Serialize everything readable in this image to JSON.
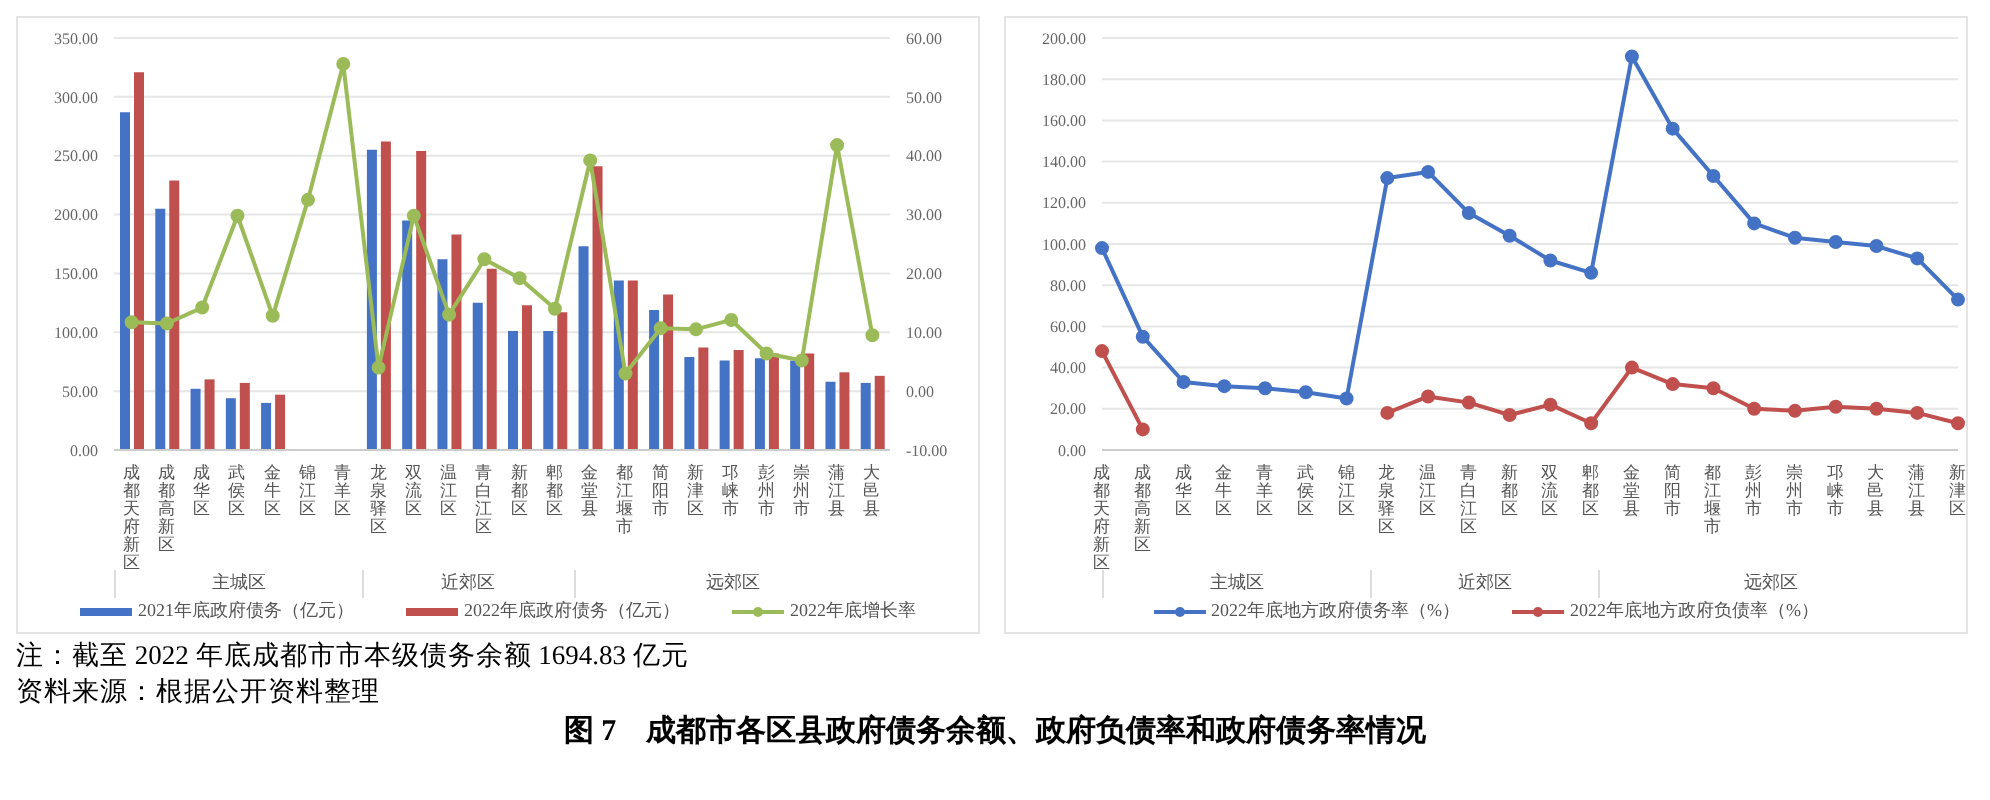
{
  "chart_data": [
    {
      "type": "bar",
      "categories": [
        "成都天府新区",
        "成都高新区",
        "成华区",
        "武侯区",
        "金牛区",
        "锦江区",
        "青羊区",
        "龙泉驿区",
        "双流区",
        "温江区",
        "青白江区",
        "新都区",
        "郫都区",
        "金堂县",
        "都江堰市",
        "简阳市",
        "新津区",
        "邛崃市",
        "彭州市",
        "崇州市",
        "蒲江县",
        "大邑县"
      ],
      "series": [
        {
          "name": "2021年底政府债务（亿元）",
          "color": "#4472c4",
          "values": [
            287,
            205,
            52,
            44,
            40,
            null,
            null,
            255,
            195,
            162,
            125,
            101,
            101,
            173,
            144,
            119,
            79,
            76,
            78,
            76,
            58,
            57
          ]
        },
        {
          "name": "2022年底政府债务（亿元）",
          "color": "#c0504d",
          "values": [
            321,
            229,
            60,
            57,
            47,
            null,
            null,
            262,
            254,
            183,
            154,
            123,
            117,
            241,
            144,
            132,
            87,
            85,
            82,
            82,
            66,
            63
          ]
        },
        {
          "name": "2022年底增长率",
          "color": "#9bbb59",
          "type": "line",
          "axis": "y2",
          "values": [
            11.7,
            11.5,
            14.2,
            29.8,
            12.8,
            32.5,
            55.6,
            4,
            29.8,
            13,
            22.4,
            19.2,
            14,
            39.2,
            3,
            10.7,
            10.5,
            12.1,
            6.4,
            5.2,
            41.8,
            9.5
          ]
        }
      ],
      "ylim": [
        0,
        350
      ],
      "yticks": [
        {
          "value": 0,
          "label": "0.00"
        },
        {
          "value": 50,
          "label": "50.00"
        },
        {
          "value": 100,
          "label": "100.00"
        },
        {
          "value": 150,
          "label": "150.00"
        },
        {
          "value": 200,
          "label": "200.00"
        },
        {
          "value": 250,
          "label": "250.00"
        },
        {
          "value": 300,
          "label": "300.00"
        },
        {
          "value": 350,
          "label": "350.00"
        }
      ],
      "y2lim": [
        -10,
        60
      ],
      "y2ticks": [
        {
          "value": -10,
          "label": "-10.00"
        },
        {
          "value": 0,
          "label": "0.00"
        },
        {
          "value": 10,
          "label": "10.00"
        },
        {
          "value": 20,
          "label": "20.00"
        },
        {
          "value": 30,
          "label": "30.00"
        },
        {
          "value": 40,
          "label": "40.00"
        },
        {
          "value": 50,
          "label": "50.00"
        },
        {
          "value": 60,
          "label": "60.00"
        }
      ],
      "grid": "y",
      "legend": "bottom",
      "marker": "circle",
      "annotations": [
        "主城区",
        "近郊区",
        "远郊区",
        "注：截至 2022 年底成都市市本级债务余额 1694.83 亿元",
        "资料来源：根据公开资料整理",
        "图 7　成都市各区县政府债务余额、政府负债率和政府债务率情况"
      ]
    },
    {
      "type": "line",
      "categories": [
        "成都天府新区",
        "成都高新区",
        "成华区",
        "金牛区",
        "青羊区",
        "武侯区",
        "锦江区",
        "龙泉驿区",
        "温江区",
        "青白江区",
        "新都区",
        "双流区",
        "郫都区",
        "金堂县",
        "简阳市",
        "都江堰市",
        "彭州市",
        "崇州市",
        "邛崃市",
        "大邑县",
        "蒲江县",
        "新津区"
      ],
      "series": [
        {
          "name": "2022年底地方政府债务率（%）",
          "color": "#4472c4",
          "values": [
            98,
            55,
            33,
            31,
            30,
            28,
            25,
            132,
            135,
            115,
            104,
            92,
            86,
            191,
            156,
            133,
            110,
            103,
            101,
            99,
            93,
            73
          ]
        },
        {
          "name": "2022年底地方政府负债率（%）",
          "color": "#c0504d",
          "values": [
            48,
            10,
            null,
            null,
            null,
            null,
            null,
            18,
            26,
            23,
            17,
            22,
            13,
            40,
            32,
            30,
            20,
            19,
            21,
            20,
            18,
            13
          ]
        }
      ],
      "ylim": [
        0,
        200
      ],
      "yticks": [
        {
          "value": 0,
          "label": "0.00"
        },
        {
          "value": 20,
          "label": "20.00"
        },
        {
          "value": 40,
          "label": "40.00"
        },
        {
          "value": 60,
          "label": "60.00"
        },
        {
          "value": 80,
          "label": "80.00"
        },
        {
          "value": 100,
          "label": "100.00"
        },
        {
          "value": 120,
          "label": "120.00"
        },
        {
          "value": 140,
          "label": "140.00"
        },
        {
          "value": 160,
          "label": "160.00"
        },
        {
          "value": 180,
          "label": "180.00"
        },
        {
          "value": 200,
          "label": "200.00"
        }
      ],
      "grid": "y",
      "legend": "bottom",
      "marker": "circle",
      "annotations": [
        "主城区",
        "近郊区",
        "远郊区"
      ]
    }
  ]
}
